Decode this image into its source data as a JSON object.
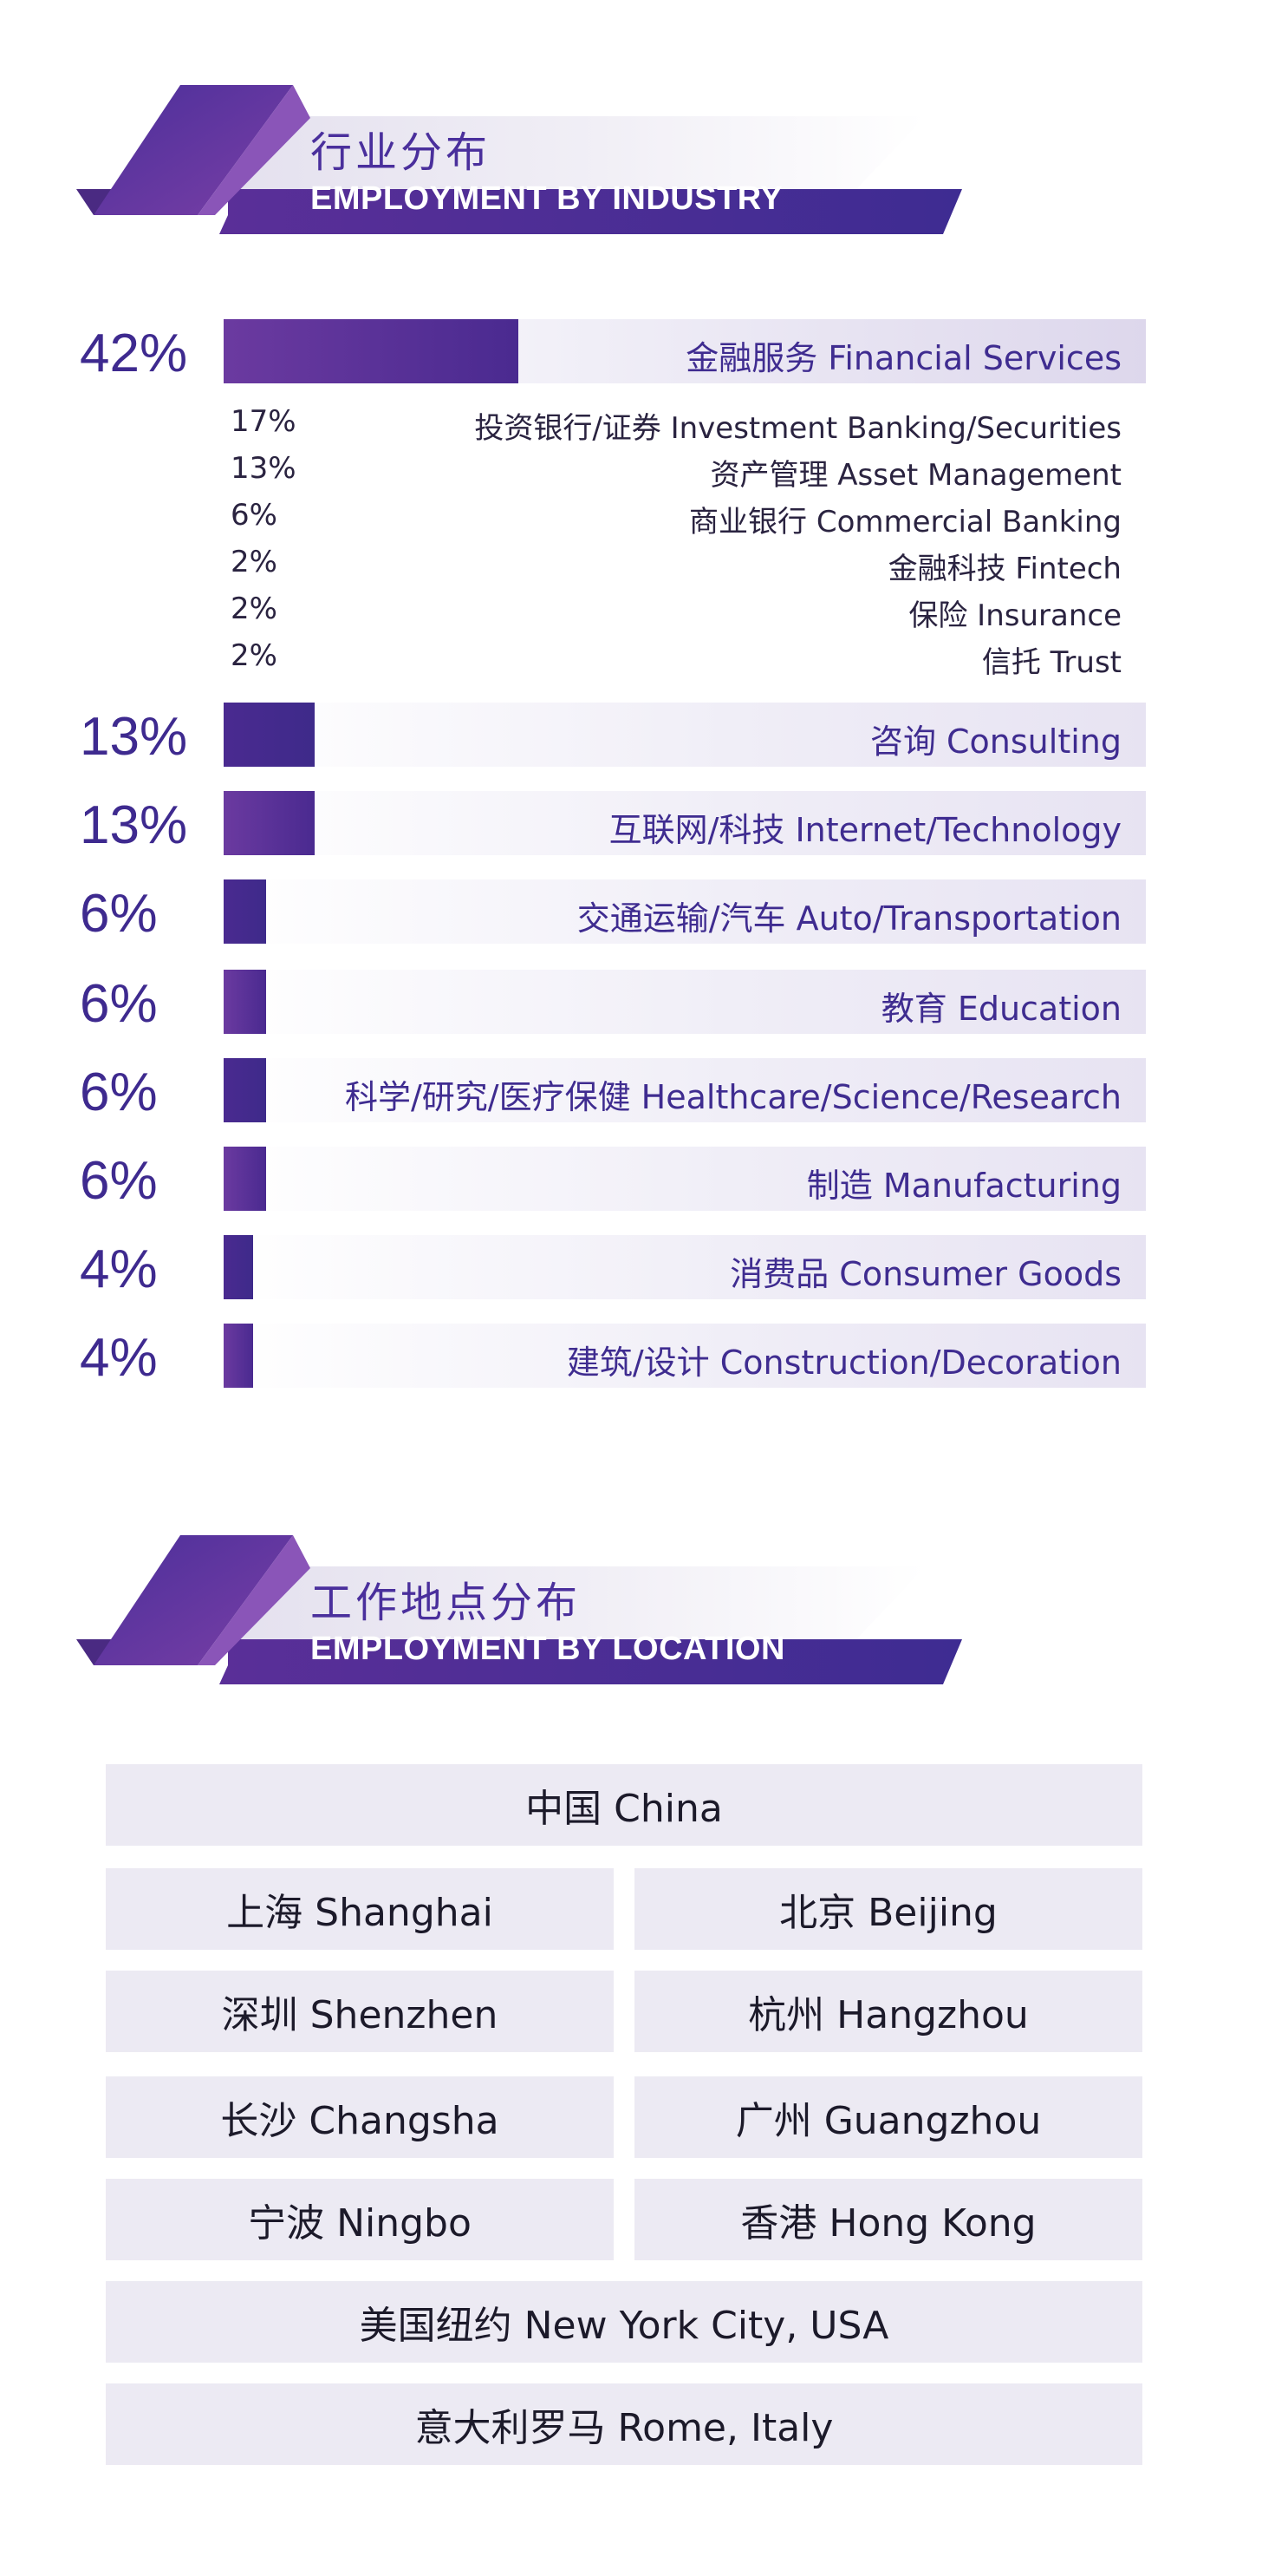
{
  "industry": {
    "title_cn": "行业分布",
    "title_en": "EMPLOYMENT BY INDUSTRY"
  },
  "location": {
    "title_cn": "工作地点分布",
    "title_en": "EMPLOYMENT BY LOCATION",
    "full_rows": [
      "中国 China",
      "美国纽约 New York City, USA",
      "意大利罗马 Rome, Italy"
    ],
    "pairs": [
      [
        "上海 Shanghai",
        "北京 Beijing"
      ],
      [
        "深圳 Shenzhen",
        "杭州 Hangzhou"
      ],
      [
        "长沙 Changsha",
        "广州 Guangzhou"
      ],
      [
        "宁波 Ningbo",
        "香港 Hong Kong"
      ]
    ]
  },
  "colors": {
    "accent": "#4a2a90",
    "accent_light": "#7a4aae",
    "panel": "#eceaf3"
  },
  "chart_data": {
    "type": "bar",
    "orientation": "horizontal",
    "categories": [
      "金融服务 Financial Services",
      "咨询  Consulting",
      "互联网/科技 Internet/Technology",
      "交通运输/汽车 Auto/Transportation",
      "教育 Education",
      "科学/研究/医疗保健  Healthcare/Science/Research",
      "制造 Manufacturing",
      "消费品 Consumer Goods",
      "建筑/设计 Construction/Decoration"
    ],
    "values": [
      42,
      13,
      13,
      6,
      6,
      6,
      6,
      4,
      4
    ],
    "value_labels": [
      "42%",
      "13%",
      "13%",
      "6%",
      "6%",
      "6%",
      "6%",
      "4%",
      "4%"
    ],
    "breakdown": {
      "parent": "金融服务 Financial Services",
      "items": [
        {
          "label": "投资银行/证券 Investment Banking/Securities",
          "value": 17,
          "value_label": "17%"
        },
        {
          "label": "资产管理 Asset Management",
          "value": 13,
          "value_label": "13%"
        },
        {
          "label": "商业银行 Commercial Banking",
          "value": 6,
          "value_label": "6%"
        },
        {
          "label": "金融科技 Fintech",
          "value": 2,
          "value_label": "2%"
        },
        {
          "label": "保险 Insurance",
          "value": 2,
          "value_label": "2%"
        },
        {
          "label": "信托 Trust",
          "value": 2,
          "value_label": "2%"
        }
      ]
    },
    "xlim": [
      0,
      100
    ]
  }
}
